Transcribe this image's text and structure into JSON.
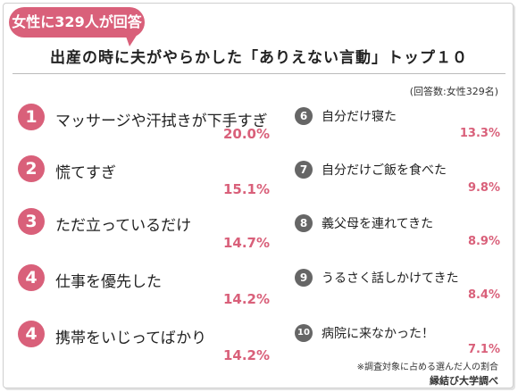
{
  "badge": "女性に329人が回答",
  "title": "出産の時に夫がやらかした「ありえない言動」トップ１０",
  "respondents_note": "(回答数:女性329名)",
  "left_items": [
    {
      "rank": "1",
      "label": "マッサージや汗拭きが下手すぎ",
      "percent": "20.0%"
    },
    {
      "rank": "2",
      "label": "慌てすぎ",
      "percent": "15.1%"
    },
    {
      "rank": "3",
      "label": "ただ立っているだけ",
      "percent": "14.7%"
    },
    {
      "rank": "4",
      "label": "仕事を優先した",
      "percent": "14.2%"
    },
    {
      "rank": "4",
      "label": "携帯をいじってばかり",
      "percent": "14.2%"
    }
  ],
  "right_items": [
    {
      "rank": "6",
      "label": "自分だけ寝た",
      "percent": "13.3%"
    },
    {
      "rank": "7",
      "label": "自分だけご飯を食べた",
      "percent": "9.8%"
    },
    {
      "rank": "8",
      "label": "義父母を連れてきた",
      "percent": "8.9%"
    },
    {
      "rank": "9",
      "label": "うるさく話しかけてきた",
      "percent": "8.4%"
    },
    {
      "rank": "10",
      "label": "病院に来なかった！",
      "percent": "7.1%"
    }
  ],
  "footnote": "※調査対象に占める選んだ人の割合",
  "source": "縁結び大学調べ",
  "colors": {
    "accent": "#d9607a",
    "rank_gray": "#666666"
  }
}
